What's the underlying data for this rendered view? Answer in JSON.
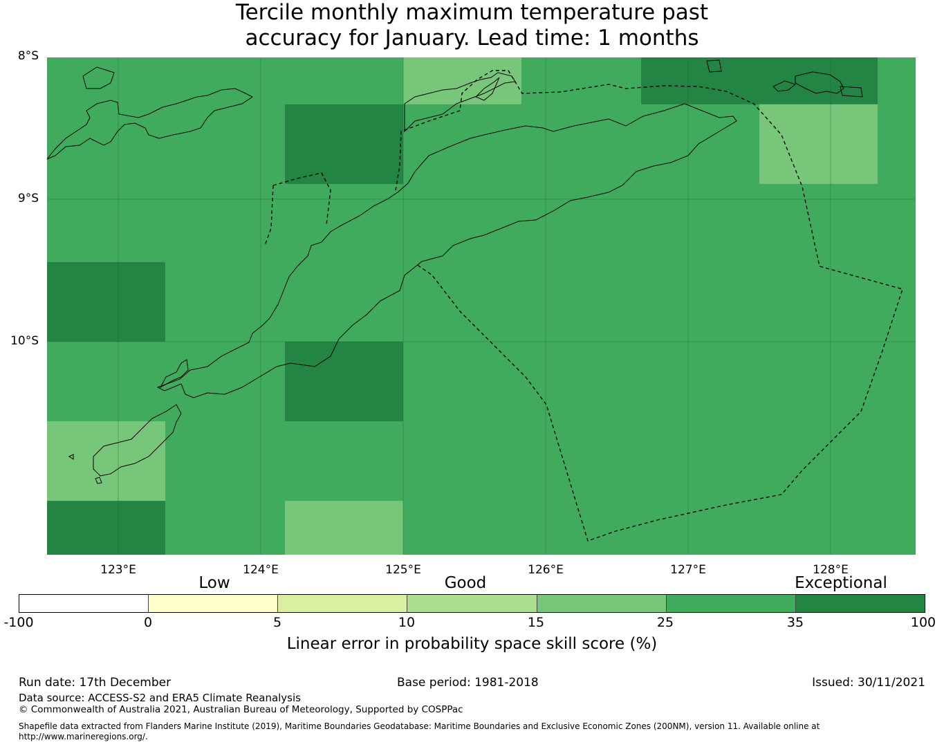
{
  "title": {
    "line1": "Tercile monthly maximum temperature past",
    "line2": "accuracy for January. Lead time: 1 months"
  },
  "map": {
    "lat_labels": [
      "8°S",
      "9°S",
      "10°S"
    ],
    "lon_labels": [
      "123°E",
      "124°E",
      "125°E",
      "126°E",
      "127°E",
      "128°E"
    ],
    "lon_range": [
      122.5,
      128.6
    ],
    "lat_range": [
      -11.5,
      -8.0
    ],
    "grid_cells_note": "",
    "cell_classes": {
      "light": "#78c679",
      "medium": "#41ab5d",
      "dark": "#238443"
    },
    "cells": [
      {
        "lon": [
          122.5,
          123.33
        ],
        "lat": [
          -10.0,
          -9.44
        ],
        "class": "dark"
      },
      {
        "lon": [
          122.5,
          123.33
        ],
        "lat": [
          -11.12,
          -10.56
        ],
        "class": "light"
      },
      {
        "lon": [
          122.5,
          123.33
        ],
        "lat": [
          -11.5,
          -11.12
        ],
        "class": "dark"
      },
      {
        "lon": [
          124.17,
          125.0
        ],
        "lat": [
          -8.89,
          -8.33
        ],
        "class": "dark"
      },
      {
        "lon": [
          124.17,
          125.0
        ],
        "lat": [
          -10.56,
          -10.0
        ],
        "class": "dark"
      },
      {
        "lon": [
          124.17,
          125.0
        ],
        "lat": [
          -11.5,
          -11.12
        ],
        "class": "light"
      },
      {
        "lon": [
          125.0,
          125.83
        ],
        "lat": [
          -8.33,
          -8.0
        ],
        "class": "light"
      },
      {
        "lon": [
          126.67,
          128.33
        ],
        "lat": [
          -8.33,
          -8.0
        ],
        "class": "dark"
      },
      {
        "lon": [
          127.5,
          128.33
        ],
        "lat": [
          -8.89,
          -8.33
        ],
        "class": "light"
      }
    ]
  },
  "colorbar": {
    "category_labels": [
      "Low",
      "Good",
      "Exceptional"
    ],
    "ticks": [
      "-100",
      "0",
      "5",
      "10",
      "15",
      "25",
      "35",
      "100"
    ],
    "colors": [
      "#ffffff",
      "#ffffcc",
      "#d9f0a3",
      "#addd8e",
      "#78c679",
      "#41ab5d",
      "#238443"
    ],
    "title": "Linear error in probability space skill score (%)"
  },
  "footer": {
    "run_date": "Run date: 17th December",
    "base_period": "Base period: 1981-2018",
    "issued": "Issued: 30/11/2021",
    "data_source": "Data source: ACCESS-S2 and ERA5 Climate Reanalysis",
    "copyright": "© Commonwealth of Australia 2021, Australian Bureau of Meteorology, Supported by COSPPac",
    "shapefile_line1": "Shapefile data extracted from Flanders Marine Institute (2019), Maritime Boundaries Geodatabase: Maritime Boundaries and Exclusive Economic Zones (200NM), version 11. Available online at",
    "shapefile_line2": "http://www.marineregions.org/."
  }
}
